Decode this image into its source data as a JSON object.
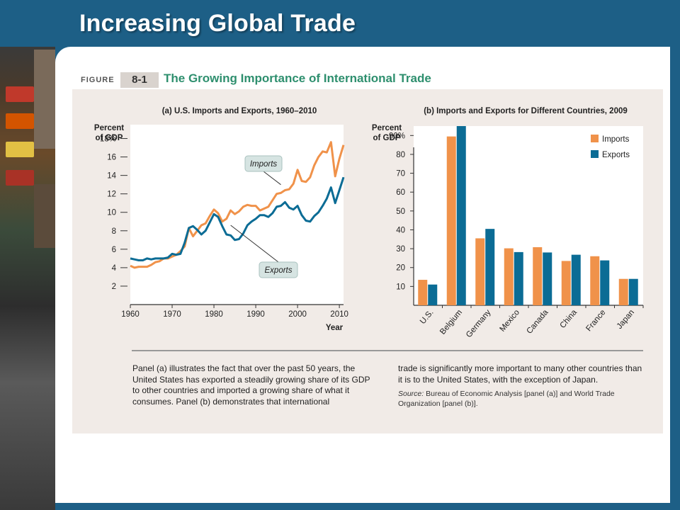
{
  "slide": {
    "title": "Increasing Global Trade"
  },
  "figure": {
    "label": "FIGURE",
    "number": "8-1",
    "title": "The Growing Importance of International Trade"
  },
  "caption": {
    "left": "Panel (a) illustrates the fact that over the past 50 years, the United States has exported a steadily growing share of its GDP to other countries and imported a growing share of what it consumes. Panel (b) demonstrates that international",
    "right": "trade is significantly more important to many other countries than it is to the United States, with the exception of Japan.",
    "source_label": "Source:",
    "source_text": " Bureau of Economic Analysis [panel (a)] and World Trade Organization [panel (b)]."
  },
  "colors": {
    "imports": "#f0924a",
    "exports": "#0b6c95",
    "title_bar": "#1d5f86",
    "figure_title": "#2e8f6e"
  },
  "chart_data": [
    {
      "type": "line",
      "title": "(a) U.S. Imports and Exports, 1960–2010",
      "ylabel": "Percent of GDP",
      "xlabel": "Year",
      "ylim": [
        0,
        19.5
      ],
      "xlim": [
        1960,
        2011
      ],
      "y_ticks": [
        "2",
        "4",
        "6",
        "8",
        "10",
        "12",
        "14",
        "16",
        "18%"
      ],
      "x_ticks": [
        "1960",
        "1970",
        "1980",
        "1990",
        "2000",
        "2010"
      ],
      "annotations": [
        "Imports",
        "Exports"
      ],
      "grid": false,
      "series": [
        {
          "name": "Imports",
          "x": [
            1960,
            1961,
            1962,
            1963,
            1964,
            1965,
            1966,
            1967,
            1968,
            1969,
            1970,
            1971,
            1972,
            1973,
            1974,
            1975,
            1976,
            1977,
            1978,
            1979,
            1980,
            1981,
            1982,
            1983,
            1984,
            1985,
            1986,
            1987,
            1988,
            1989,
            1990,
            1991,
            1992,
            1993,
            1994,
            1995,
            1996,
            1997,
            1998,
            1999,
            2000,
            2001,
            2002,
            2003,
            2004,
            2005,
            2006,
            2007,
            2008,
            2009,
            2010,
            2011
          ],
          "values": [
            4.2,
            4.0,
            4.1,
            4.1,
            4.1,
            4.3,
            4.6,
            4.7,
            5.0,
            5.0,
            5.2,
            5.4,
            5.8,
            6.3,
            8.3,
            7.4,
            8.0,
            8.6,
            8.8,
            9.6,
            10.3,
            9.9,
            9.0,
            9.3,
            10.2,
            9.8,
            10.1,
            10.6,
            10.8,
            10.7,
            10.7,
            10.2,
            10.4,
            10.6,
            11.3,
            12.0,
            12.1,
            12.4,
            12.5,
            13.1,
            14.6,
            13.4,
            13.3,
            13.8,
            15.1,
            16.0,
            16.6,
            16.5,
            17.6,
            13.9,
            15.8,
            17.3
          ],
          "color": "#f0924a"
        },
        {
          "name": "Exports",
          "x": [
            1960,
            1961,
            1962,
            1963,
            1964,
            1965,
            1966,
            1967,
            1968,
            1969,
            1970,
            1971,
            1972,
            1973,
            1974,
            1975,
            1976,
            1977,
            1978,
            1979,
            1980,
            1981,
            1982,
            1983,
            1984,
            1985,
            1986,
            1987,
            1988,
            1989,
            1990,
            1991,
            1992,
            1993,
            1994,
            1995,
            1996,
            1997,
            1998,
            1999,
            2000,
            2001,
            2002,
            2003,
            2004,
            2005,
            2006,
            2007,
            2008,
            2009,
            2010,
            2011
          ],
          "values": [
            5.0,
            4.9,
            4.8,
            4.8,
            5.0,
            4.9,
            5.0,
            5.0,
            5.0,
            5.1,
            5.5,
            5.4,
            5.5,
            6.7,
            8.3,
            8.5,
            8.1,
            7.6,
            8.0,
            8.9,
            9.8,
            9.5,
            8.5,
            7.6,
            7.5,
            7.0,
            7.1,
            7.7,
            8.6,
            9.0,
            9.3,
            9.7,
            9.7,
            9.5,
            9.9,
            10.6,
            10.7,
            11.1,
            10.5,
            10.3,
            10.7,
            9.7,
            9.1,
            9.0,
            9.6,
            10.0,
            10.7,
            11.5,
            12.7,
            11.0,
            12.4,
            13.8
          ],
          "color": "#0b6c95"
        }
      ]
    },
    {
      "type": "bar",
      "title": "(b) Imports and Exports for Different Countries, 2009",
      "ylabel": "Percent of GDP",
      "ylim": [
        0,
        95
      ],
      "y_ticks": [
        "10",
        "20",
        "30",
        "40",
        "50",
        "60",
        "70",
        "80",
        "90%"
      ],
      "categories": [
        "U.S.",
        "Belgium",
        "Germany",
        "Mexico",
        "Canada",
        "China",
        "France",
        "Japan"
      ],
      "legend_position": "top-right",
      "grid": false,
      "series": [
        {
          "name": "Imports",
          "values": [
            13.5,
            89.5,
            35.5,
            30.2,
            30.8,
            23.5,
            26.0,
            14.0
          ],
          "color": "#f0924a"
        },
        {
          "name": "Exports",
          "values": [
            11.0,
            95.0,
            40.5,
            28.2,
            28.0,
            26.8,
            23.8,
            14.0
          ],
          "color": "#0b6c95"
        }
      ]
    }
  ]
}
